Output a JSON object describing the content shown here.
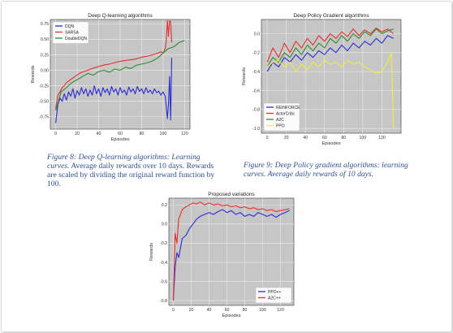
{
  "chart_data": [
    {
      "type": "line",
      "title": "Deep Q-learning algorithms",
      "xlabel": "Episodes",
      "ylabel": "Rewards",
      "xlim": [
        -5,
        125
      ],
      "ylim": [
        -0.95,
        0.82
      ],
      "xticks": [
        0,
        20,
        40,
        60,
        80,
        100,
        120
      ],
      "yticks": [
        -0.75,
        -0.5,
        -0.25,
        0.0,
        0.25,
        0.5,
        0.75
      ],
      "grid": true,
      "legend": "top-left",
      "colors": {
        "DQN": "#2b2bd6",
        "SARSA": "#e53030",
        "DoubleDQN": "#2e8b2e"
      },
      "series": [
        {
          "name": "DQN",
          "x": [
            0,
            2,
            4,
            6,
            8,
            10,
            12,
            14,
            16,
            18,
            20,
            22,
            24,
            26,
            28,
            30,
            32,
            34,
            36,
            38,
            40,
            42,
            44,
            46,
            48,
            50,
            52,
            54,
            56,
            58,
            60,
            62,
            64,
            66,
            68,
            70,
            72,
            74,
            76,
            78,
            80,
            82,
            84,
            86,
            88,
            90,
            92,
            94,
            96,
            98,
            100,
            102,
            104,
            105,
            106,
            107,
            108
          ],
          "y": [
            -0.85,
            -0.55,
            -0.45,
            -0.5,
            -0.38,
            -0.48,
            -0.35,
            -0.42,
            -0.3,
            -0.45,
            -0.33,
            -0.4,
            -0.28,
            -0.38,
            -0.3,
            -0.42,
            -0.32,
            -0.4,
            -0.25,
            -0.38,
            -0.3,
            -0.42,
            -0.28,
            -0.36,
            -0.3,
            -0.4,
            -0.26,
            -0.35,
            -0.3,
            -0.4,
            -0.28,
            -0.36,
            -0.32,
            -0.4,
            -0.27,
            -0.35,
            -0.3,
            -0.38,
            -0.26,
            -0.34,
            -0.3,
            -0.38,
            -0.28,
            -0.36,
            -0.32,
            -0.38,
            -0.3,
            -0.36,
            -0.34,
            -0.4,
            -0.35,
            -0.42,
            -0.78,
            -0.55,
            -0.1,
            -0.8,
            0.2
          ]
        },
        {
          "name": "SARSA",
          "x": [
            0,
            2,
            4,
            6,
            8,
            10,
            14,
            18,
            22,
            26,
            30,
            34,
            38,
            42,
            46,
            50,
            54,
            58,
            62,
            66,
            70,
            74,
            78,
            82,
            86,
            90,
            94,
            98,
            100,
            102,
            103,
            104,
            105,
            106,
            107,
            108
          ],
          "y": [
            -0.62,
            -0.4,
            -0.35,
            -0.28,
            -0.25,
            -0.2,
            -0.15,
            -0.1,
            -0.05,
            -0.02,
            0.0,
            0.03,
            0.05,
            0.07,
            0.09,
            0.1,
            0.12,
            0.14,
            0.15,
            0.16,
            0.17,
            0.18,
            0.2,
            0.22,
            0.23,
            0.25,
            0.27,
            0.3,
            0.28,
            0.35,
            0.5,
            0.8,
            0.55,
            0.8,
            0.78,
            0.45
          ]
        },
        {
          "name": "DoubleDQN",
          "x": [
            0,
            5,
            10,
            15,
            20,
            25,
            30,
            35,
            40,
            45,
            50,
            55,
            60,
            65,
            70,
            75,
            80,
            85,
            90,
            95,
            100,
            105,
            110,
            115,
            120
          ],
          "y": [
            -0.65,
            -0.35,
            -0.28,
            -0.2,
            -0.15,
            -0.1,
            -0.05,
            -0.08,
            -0.02,
            0.0,
            -0.03,
            0.02,
            0.0,
            0.05,
            0.03,
            0.08,
            0.1,
            0.12,
            0.15,
            0.2,
            0.28,
            0.35,
            0.38,
            0.45,
            0.48
          ]
        }
      ]
    },
    {
      "type": "line",
      "title": "Deep Policy Gradient algorithms",
      "xlabel": "Episodes",
      "ylabel": "Rewards",
      "xlim": [
        -6,
        140
      ],
      "ylim": [
        -1.05,
        0.15
      ],
      "xticks": [
        0,
        20,
        40,
        60,
        80,
        100,
        120
      ],
      "yticks": [
        -1.0,
        -0.8,
        -0.6,
        -0.4,
        -0.2,
        0.0
      ],
      "grid": true,
      "legend": "bottom-left",
      "colors": {
        "REINFORCE": "#2b2bd6",
        "ActorCritic": "#e53030",
        "A2C": "#2e8b2e",
        "PPO": "#f0ef3a"
      },
      "series": [
        {
          "name": "REINFORCE",
          "x": [
            0,
            6,
            12,
            18,
            24,
            30,
            36,
            42,
            48,
            54,
            60,
            66,
            72,
            78,
            84,
            90,
            96,
            102,
            108,
            114,
            120,
            126,
            132
          ],
          "y": [
            -0.4,
            -0.3,
            -0.35,
            -0.25,
            -0.3,
            -0.22,
            -0.28,
            -0.2,
            -0.25,
            -0.18,
            -0.22,
            -0.15,
            -0.2,
            -0.12,
            -0.18,
            -0.1,
            -0.15,
            -0.08,
            -0.12,
            -0.05,
            -0.1,
            -0.02,
            -0.05
          ]
        },
        {
          "name": "ActorCritic",
          "x": [
            0,
            6,
            12,
            18,
            24,
            30,
            36,
            42,
            48,
            54,
            60,
            66,
            72,
            78,
            84,
            90,
            96,
            102,
            108,
            114,
            120,
            126,
            132
          ],
          "y": [
            -0.3,
            -0.15,
            -0.25,
            -0.1,
            -0.2,
            -0.08,
            -0.15,
            -0.05,
            -0.12,
            -0.02,
            -0.08,
            0.0,
            -0.05,
            0.02,
            -0.03,
            0.05,
            -0.02,
            0.04,
            0.0,
            0.06,
            0.02,
            0.05,
            0.0
          ]
        },
        {
          "name": "A2C",
          "x": [
            0,
            6,
            12,
            18,
            24,
            30,
            36,
            42,
            48,
            54,
            60,
            66,
            72,
            78,
            84,
            90,
            96,
            102,
            108,
            114,
            120,
            126,
            132
          ],
          "y": [
            -0.35,
            -0.25,
            -0.3,
            -0.2,
            -0.25,
            -0.15,
            -0.22,
            -0.12,
            -0.18,
            -0.1,
            -0.15,
            -0.05,
            -0.1,
            -0.02,
            -0.08,
            0.0,
            -0.05,
            0.02,
            -0.02,
            0.05,
            0.0,
            0.03,
            0.05
          ]
        },
        {
          "name": "PPO",
          "x": [
            0,
            6,
            12,
            18,
            24,
            30,
            36,
            42,
            48,
            54,
            60,
            66,
            72,
            78,
            84,
            90,
            96,
            102,
            108,
            114,
            120,
            126,
            130,
            132
          ],
          "y": [
            -0.35,
            -0.3,
            -0.28,
            -0.35,
            -0.3,
            -0.4,
            -0.32,
            -0.38,
            -0.3,
            -0.35,
            -0.28,
            -0.32,
            -0.3,
            -0.35,
            -0.28,
            -0.32,
            -0.3,
            -0.35,
            -0.38,
            -0.42,
            -0.4,
            -0.3,
            -0.2,
            -1.0
          ]
        }
      ]
    },
    {
      "type": "line",
      "title": "Proposed variations",
      "xlabel": "Episodes",
      "ylabel": "Rewards",
      "xlim": [
        -5,
        135
      ],
      "ylim": [
        -0.85,
        0.27
      ],
      "xticks": [
        0,
        20,
        40,
        60,
        80,
        100,
        120
      ],
      "yticks": [
        -0.8,
        -0.6,
        -0.4,
        -0.2,
        0.0,
        0.2
      ],
      "grid": true,
      "legend": "bottom-right",
      "colors": {
        "PPO++": "#2b2bd6",
        "A2C++": "#e53030"
      },
      "series": [
        {
          "name": "PPO++",
          "x": [
            0,
            2,
            4,
            6,
            8,
            10,
            14,
            18,
            22,
            26,
            30,
            35,
            40,
            45,
            50,
            55,
            60,
            65,
            70,
            75,
            80,
            85,
            90,
            95,
            100,
            105,
            110,
            115,
            120,
            125,
            130
          ],
          "y": [
            -0.8,
            -0.45,
            -0.3,
            -0.35,
            -0.25,
            -0.15,
            -0.12,
            -0.05,
            0.0,
            0.05,
            0.08,
            0.1,
            0.12,
            0.1,
            0.13,
            0.15,
            0.12,
            0.14,
            0.1,
            0.12,
            0.08,
            0.1,
            0.08,
            0.12,
            0.1,
            0.08,
            0.1,
            0.07,
            0.1,
            0.12,
            0.14
          ]
        },
        {
          "name": "A2C++",
          "x": [
            0,
            2,
            4,
            6,
            8,
            10,
            14,
            18,
            22,
            26,
            30,
            35,
            40,
            45,
            50,
            55,
            60,
            65,
            70,
            75,
            80,
            85,
            90,
            95,
            100,
            105,
            110,
            115,
            120,
            125,
            130
          ],
          "y": [
            -0.8,
            -0.1,
            -0.2,
            0.05,
            0.1,
            0.15,
            0.18,
            0.2,
            0.22,
            0.21,
            0.23,
            0.2,
            0.22,
            0.2,
            0.21,
            0.19,
            0.2,
            0.18,
            0.19,
            0.17,
            0.18,
            0.16,
            0.17,
            0.15,
            0.16,
            0.14,
            0.15,
            0.13,
            0.14,
            0.15,
            0.16
          ]
        }
      ]
    }
  ],
  "captions": {
    "fig8_label": "Figure 8:",
    "fig8_italic": "Deep Q-learning algorithms: Learning curves.",
    "fig8_rest": "Average daily rewards over 10 days. Rewards are scaled by dividing the original reward function by 100.",
    "fig9_label": "Figure 9:",
    "fig9_italic": "Deep Policy gradient algorithms: learning curves. Average daily rewards of 10 days."
  }
}
